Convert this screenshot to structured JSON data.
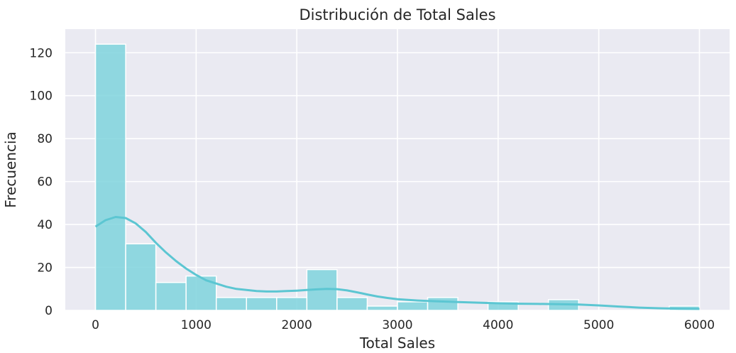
{
  "chart_data": {
    "type": "bar",
    "title": "Distribución de Total Sales",
    "xlabel": "Total Sales",
    "ylabel": "Frecuencia",
    "xlim": [
      -300,
      6300
    ],
    "ylim": [
      0,
      131
    ],
    "xticks": [
      0,
      1000,
      2000,
      3000,
      4000,
      5000,
      6000
    ],
    "yticks": [
      0,
      20,
      40,
      60,
      80,
      100,
      120
    ],
    "grid": true,
    "bin_edges": [
      0,
      300,
      600,
      900,
      1200,
      1500,
      1800,
      2100,
      2400,
      2700,
      3000,
      3300,
      3600,
      3900,
      4200,
      4500,
      4800,
      5100,
      5400,
      5700,
      6000
    ],
    "values": [
      124,
      31,
      13,
      16,
      6,
      6,
      6,
      19,
      6,
      2,
      4,
      6,
      0,
      4,
      0,
      5,
      0,
      0,
      0,
      2
    ],
    "kde": {
      "x": [
        0,
        100,
        200,
        300,
        400,
        500,
        600,
        700,
        800,
        900,
        1000,
        1100,
        1200,
        1300,
        1400,
        1500,
        1600,
        1700,
        1800,
        1900,
        2000,
        2100,
        2200,
        2300,
        2400,
        2500,
        2600,
        2700,
        2800,
        2900,
        3000,
        3200,
        3400,
        3600,
        3800,
        4000,
        4200,
        4400,
        4600,
        4800,
        5000,
        5200,
        5400,
        5600,
        5800,
        6000
      ],
      "y": [
        39,
        42,
        43.5,
        43,
        40.5,
        36.5,
        31.5,
        27,
        23,
        19.5,
        16.5,
        14,
        12.5,
        11,
        10,
        9.5,
        9,
        8.8,
        8.8,
        9,
        9.2,
        9.5,
        9.8,
        10,
        9.9,
        9.3,
        8.4,
        7.4,
        6.5,
        5.8,
        5.2,
        4.6,
        4.2,
        3.9,
        3.6,
        3.3,
        3.1,
        3.0,
        2.9,
        2.7,
        2.3,
        1.8,
        1.3,
        1.0,
        0.8,
        0.7
      ]
    },
    "colors": {
      "bar": "#7fd3dd",
      "line": "#5cc6d2",
      "plot_bg": "#eaeaf2",
      "grid": "#ffffff",
      "text": "#262626"
    }
  }
}
